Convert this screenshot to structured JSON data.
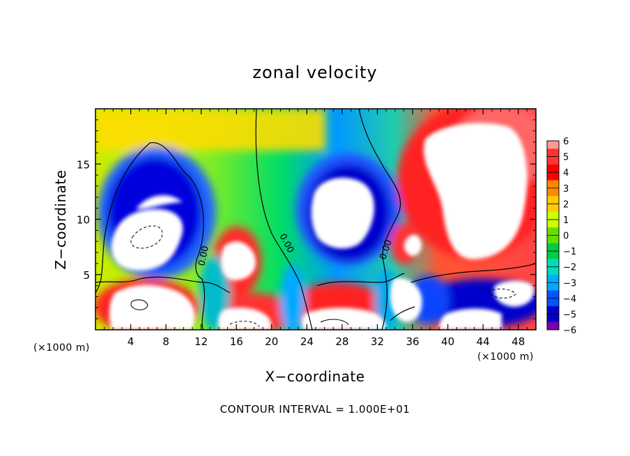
{
  "chart_data": {
    "type": "heatmap",
    "title": "zonal velocity",
    "xlabel": "X−coordinate",
    "ylabel": "Z−coordinate",
    "x_unit_left": "(×1000 m)",
    "x_unit_right": "(×1000 m)",
    "footer": "CONTOUR INTERVAL = 1.000E+01",
    "xlim": [
      0,
      50
    ],
    "ylim": [
      0,
      20
    ],
    "x_ticks": [
      "4",
      "8",
      "12",
      "16",
      "20",
      "24",
      "28",
      "32",
      "36",
      "40",
      "44",
      "48"
    ],
    "x_tick_values": [
      4,
      8,
      12,
      16,
      20,
      24,
      28,
      32,
      36,
      40,
      44,
      48
    ],
    "y_ticks": [
      "5",
      "10",
      "15"
    ],
    "y_tick_values": [
      5,
      10,
      15
    ],
    "contour_labels": [
      "0.00",
      "0.00",
      "0.00"
    ],
    "colorbar": {
      "labels": [
        "6",
        "5",
        "4",
        "3",
        "2",
        "1",
        "0",
        "−1",
        "−2",
        "−3",
        "−4",
        "−5",
        "−6"
      ],
      "colors": [
        "#ff9999",
        "#ff3333",
        "#ff0000",
        "#ff8800",
        "#ffcc00",
        "#ccff00",
        "#66dd00",
        "#00cc44",
        "#00ddbb",
        "#00aaff",
        "#0055ff",
        "#0000cc",
        "#7700aa"
      ]
    },
    "regions": [
      {
        "name": "background-gradient",
        "value_range": [
          -3,
          3
        ]
      },
      {
        "name": "left-vortex",
        "value": -6,
        "center": [
          8,
          10
        ]
      },
      {
        "name": "center-vortex",
        "value": -6,
        "center": [
          28,
          11
        ]
      },
      {
        "name": "right-jet",
        "value": 6,
        "center": [
          43,
          14
        ]
      },
      {
        "name": "bottom-jets",
        "value": 6,
        "center": [
          25,
          2
        ]
      }
    ]
  }
}
